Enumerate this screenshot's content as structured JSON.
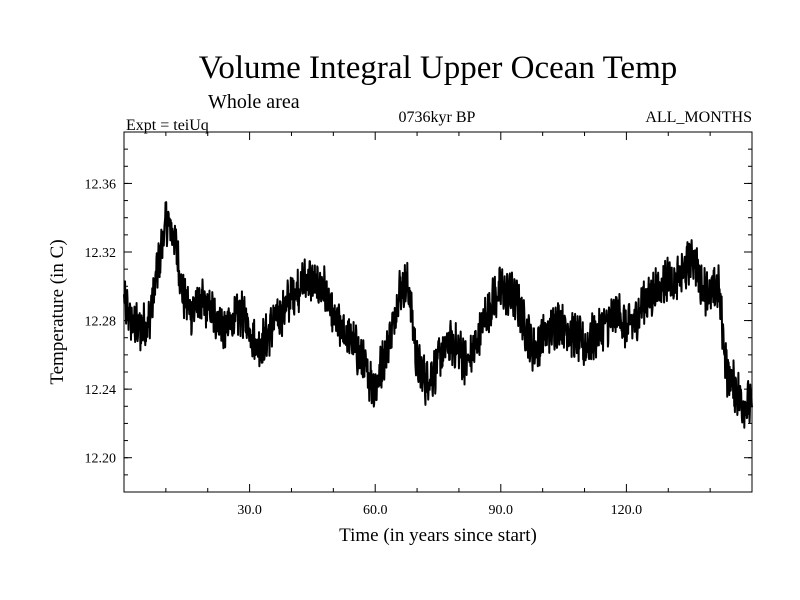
{
  "chart_data": {
    "type": "line",
    "title": "Volume Integral Upper Ocean Temp",
    "subtitle": "Whole area",
    "experiment_label": "Expt = teiUq",
    "period_label": "0736kyr BP",
    "months_label": "ALL_MONTHS",
    "xlabel": "Time (in years since start)",
    "ylabel": "Temperature (in C)",
    "xlim": [
      0,
      150
    ],
    "ylim": [
      12.18,
      12.39
    ],
    "xticks": [
      30,
      60,
      90,
      120
    ],
    "xtick_labels": [
      "30.0",
      "60.0",
      "90.0",
      "120.0"
    ],
    "yticks": [
      12.2,
      12.24,
      12.28,
      12.32,
      12.36
    ],
    "ytick_labels": [
      "12.20",
      "12.24",
      "12.28",
      "12.32",
      "12.36"
    ],
    "grid": false,
    "series": [
      {
        "name": "Volume integral upper ocean temperature",
        "color": "#000000",
        "x": [
          0,
          2,
          4,
          6,
          8,
          10,
          12,
          14,
          16,
          18,
          20,
          22,
          24,
          26,
          28,
          30,
          32,
          34,
          36,
          38,
          40,
          42,
          44,
          46,
          48,
          50,
          52,
          54,
          56,
          58,
          60,
          62,
          64,
          66,
          68,
          70,
          72,
          74,
          76,
          78,
          80,
          82,
          84,
          86,
          88,
          90,
          92,
          94,
          96,
          98,
          100,
          102,
          104,
          106,
          108,
          110,
          112,
          114,
          116,
          118,
          120,
          122,
          124,
          126,
          128,
          130,
          132,
          134,
          136,
          138,
          140,
          142,
          144,
          146,
          148,
          150
        ],
        "values": [
          12.292,
          12.278,
          12.275,
          12.28,
          12.31,
          12.338,
          12.33,
          12.295,
          12.285,
          12.29,
          12.288,
          12.282,
          12.275,
          12.28,
          12.285,
          12.275,
          12.265,
          12.27,
          12.28,
          12.285,
          12.295,
          12.3,
          12.305,
          12.3,
          12.298,
          12.28,
          12.275,
          12.27,
          12.26,
          12.25,
          12.24,
          12.258,
          12.275,
          12.3,
          12.3,
          12.255,
          12.245,
          12.25,
          12.262,
          12.268,
          12.262,
          12.255,
          12.265,
          12.28,
          12.292,
          12.298,
          12.296,
          12.29,
          12.275,
          12.262,
          12.27,
          12.275,
          12.28,
          12.275,
          12.27,
          12.265,
          12.27,
          12.275,
          12.28,
          12.285,
          12.275,
          12.28,
          12.29,
          12.295,
          12.3,
          12.305,
          12.302,
          12.31,
          12.318,
          12.3,
          12.295,
          12.3,
          12.25,
          12.24,
          12.232,
          12.23
        ]
      }
    ]
  }
}
